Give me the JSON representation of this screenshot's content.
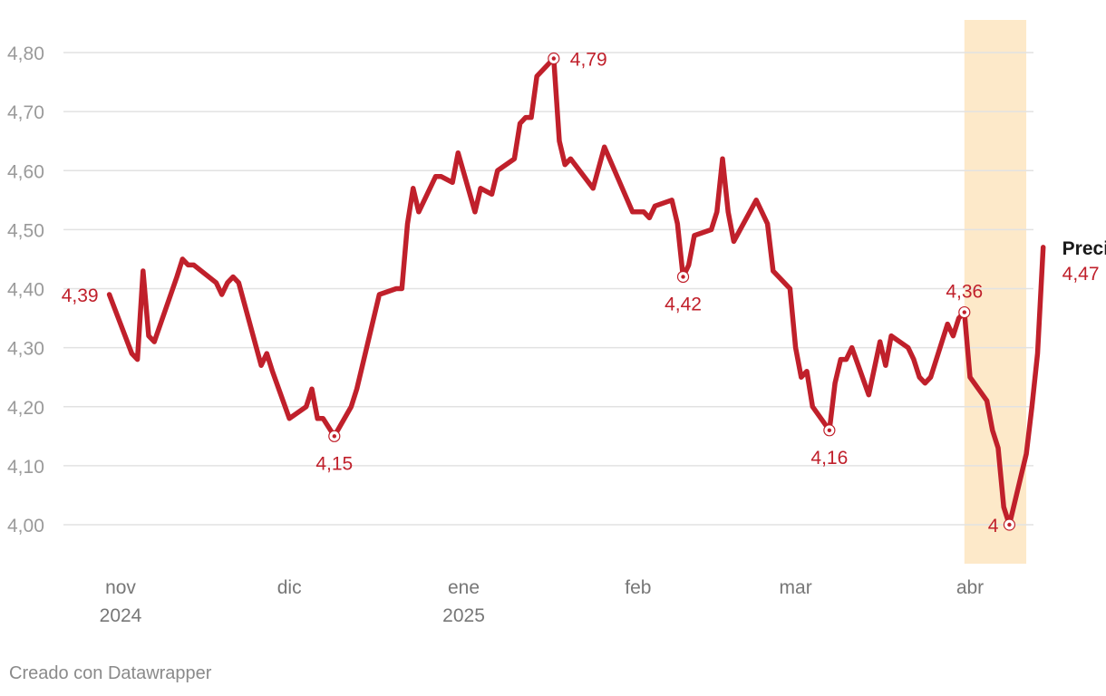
{
  "chart_data": {
    "type": "line",
    "title": "",
    "xlabel": "",
    "ylabel": "",
    "x_range": [
      "2024-10-25",
      "2025-04-09"
    ],
    "ylim": [
      3.94,
      4.86
    ],
    "grid": true,
    "y_ticks": [
      {
        "value": 4.0,
        "label": "4,00"
      },
      {
        "value": 4.1,
        "label": "4,10"
      },
      {
        "value": 4.2,
        "label": "4,20"
      },
      {
        "value": 4.3,
        "label": "4,30"
      },
      {
        "value": 4.4,
        "label": "4,40"
      },
      {
        "value": 4.5,
        "label": "4,50"
      },
      {
        "value": 4.6,
        "label": "4,60"
      },
      {
        "value": 4.7,
        "label": "4,70"
      },
      {
        "value": 4.8,
        "label": "4,80"
      }
    ],
    "x_ticks": [
      {
        "date": "2024-11-01",
        "label": "nov",
        "sublabel": "2024"
      },
      {
        "date": "2024-12-01",
        "label": "dic",
        "sublabel": ""
      },
      {
        "date": "2025-01-01",
        "label": "ene",
        "sublabel": "2025"
      },
      {
        "date": "2025-02-01",
        "label": "feb",
        "sublabel": ""
      },
      {
        "date": "2025-03-01",
        "label": "mar",
        "sublabel": ""
      },
      {
        "date": "2025-04-01",
        "label": "abr",
        "sublabel": ""
      }
    ],
    "highlight_range": [
      "2025-03-31",
      "2025-04-11"
    ],
    "highlight_color": "#fde9c9",
    "line_color": "#c0202b",
    "series": [
      {
        "name": "Precio",
        "last_label": "4,47",
        "points": [
          [
            "2024-10-30",
            4.39
          ],
          [
            "2024-11-03",
            4.29
          ],
          [
            "2024-11-04",
            4.28
          ],
          [
            "2024-11-05",
            4.43
          ],
          [
            "2024-11-06",
            4.32
          ],
          [
            "2024-11-07",
            4.31
          ],
          [
            "2024-11-11",
            4.42
          ],
          [
            "2024-11-12",
            4.45
          ],
          [
            "2024-11-13",
            4.44
          ],
          [
            "2024-11-14",
            4.44
          ],
          [
            "2024-11-18",
            4.41
          ],
          [
            "2024-11-19",
            4.39
          ],
          [
            "2024-11-20",
            4.41
          ],
          [
            "2024-11-21",
            4.42
          ],
          [
            "2024-11-22",
            4.41
          ],
          [
            "2024-11-26",
            4.27
          ],
          [
            "2024-11-27",
            4.29
          ],
          [
            "2024-11-28",
            4.26
          ],
          [
            "2024-12-01",
            4.18
          ],
          [
            "2024-12-04",
            4.2
          ],
          [
            "2024-12-05",
            4.23
          ],
          [
            "2024-12-06",
            4.18
          ],
          [
            "2024-12-07",
            4.18
          ],
          [
            "2024-12-09",
            4.15
          ],
          [
            "2024-12-12",
            4.2
          ],
          [
            "2024-12-13",
            4.23
          ],
          [
            "2024-12-14",
            4.27
          ],
          [
            "2024-12-17",
            4.39
          ],
          [
            "2024-12-20",
            4.4
          ],
          [
            "2024-12-21",
            4.4
          ],
          [
            "2024-12-22",
            4.51
          ],
          [
            "2024-12-23",
            4.57
          ],
          [
            "2024-12-24",
            4.53
          ],
          [
            "2024-12-27",
            4.59
          ],
          [
            "2024-12-28",
            4.59
          ],
          [
            "2024-12-30",
            4.58
          ],
          [
            "2024-12-31",
            4.63
          ],
          [
            "2025-01-03",
            4.53
          ],
          [
            "2025-01-04",
            4.57
          ],
          [
            "2025-01-06",
            4.56
          ],
          [
            "2025-01-07",
            4.6
          ],
          [
            "2025-01-10",
            4.62
          ],
          [
            "2025-01-11",
            4.68
          ],
          [
            "2025-01-12",
            4.69
          ],
          [
            "2025-01-13",
            4.69
          ],
          [
            "2025-01-14",
            4.76
          ],
          [
            "2025-01-17",
            4.79
          ],
          [
            "2025-01-18",
            4.65
          ],
          [
            "2025-01-19",
            4.61
          ],
          [
            "2025-01-20",
            4.62
          ],
          [
            "2025-01-24",
            4.57
          ],
          [
            "2025-01-26",
            4.64
          ],
          [
            "2025-01-31",
            4.53
          ],
          [
            "2025-02-02",
            4.53
          ],
          [
            "2025-02-03",
            4.52
          ],
          [
            "2025-02-04",
            4.54
          ],
          [
            "2025-02-07",
            4.55
          ],
          [
            "2025-02-08",
            4.51
          ],
          [
            "2025-02-09",
            4.42
          ],
          [
            "2025-02-10",
            4.44
          ],
          [
            "2025-02-11",
            4.49
          ],
          [
            "2025-02-14",
            4.5
          ],
          [
            "2025-02-15",
            4.53
          ],
          [
            "2025-02-16",
            4.62
          ],
          [
            "2025-02-17",
            4.53
          ],
          [
            "2025-02-18",
            4.48
          ],
          [
            "2025-02-22",
            4.55
          ],
          [
            "2025-02-23",
            4.53
          ],
          [
            "2025-02-24",
            4.51
          ],
          [
            "2025-02-25",
            4.43
          ],
          [
            "2025-02-28",
            4.4
          ],
          [
            "2025-03-01",
            4.3
          ],
          [
            "2025-03-02",
            4.25
          ],
          [
            "2025-03-03",
            4.26
          ],
          [
            "2025-03-04",
            4.2
          ],
          [
            "2025-03-07",
            4.16
          ],
          [
            "2025-03-08",
            4.24
          ],
          [
            "2025-03-09",
            4.28
          ],
          [
            "2025-03-10",
            4.28
          ],
          [
            "2025-03-11",
            4.3
          ],
          [
            "2025-03-14",
            4.22
          ],
          [
            "2025-03-16",
            4.31
          ],
          [
            "2025-03-17",
            4.27
          ],
          [
            "2025-03-18",
            4.32
          ],
          [
            "2025-03-21",
            4.3
          ],
          [
            "2025-03-22",
            4.28
          ],
          [
            "2025-03-23",
            4.25
          ],
          [
            "2025-03-24",
            4.24
          ],
          [
            "2025-03-25",
            4.25
          ],
          [
            "2025-03-28",
            4.34
          ],
          [
            "2025-03-29",
            4.32
          ],
          [
            "2025-03-30",
            4.35
          ],
          [
            "2025-03-31",
            4.36
          ],
          [
            "2025-04-01",
            4.25
          ],
          [
            "2025-04-04",
            4.21
          ],
          [
            "2025-04-05",
            4.16
          ],
          [
            "2025-04-06",
            4.13
          ],
          [
            "2025-04-07",
            4.03
          ],
          [
            "2025-04-08",
            4.0
          ],
          [
            "2025-04-11",
            4.12
          ],
          [
            "2025-04-12",
            4.2
          ],
          [
            "2025-04-13",
            4.29
          ],
          [
            "2025-04-14",
            4.47
          ]
        ]
      }
    ],
    "annotations": [
      {
        "date": "2024-10-30",
        "value": 4.39,
        "label": "4,39",
        "position": "left",
        "marker": false
      },
      {
        "date": "2024-12-09",
        "value": 4.15,
        "label": "4,15",
        "position": "below",
        "marker": true
      },
      {
        "date": "2025-01-17",
        "value": 4.79,
        "label": "4,79",
        "position": "right",
        "marker": true
      },
      {
        "date": "2025-02-09",
        "value": 4.42,
        "label": "4,42",
        "position": "below",
        "marker": true
      },
      {
        "date": "2025-03-07",
        "value": 4.16,
        "label": "4,16",
        "position": "below",
        "marker": true
      },
      {
        "date": "2025-03-31",
        "value": 4.36,
        "label": "4,36",
        "position": "above",
        "marker": true
      },
      {
        "date": "2025-04-08",
        "value": 4.0,
        "label": "4",
        "position": "left",
        "marker": true
      }
    ]
  },
  "footer": {
    "credit": "Creado con Datawrapper"
  }
}
